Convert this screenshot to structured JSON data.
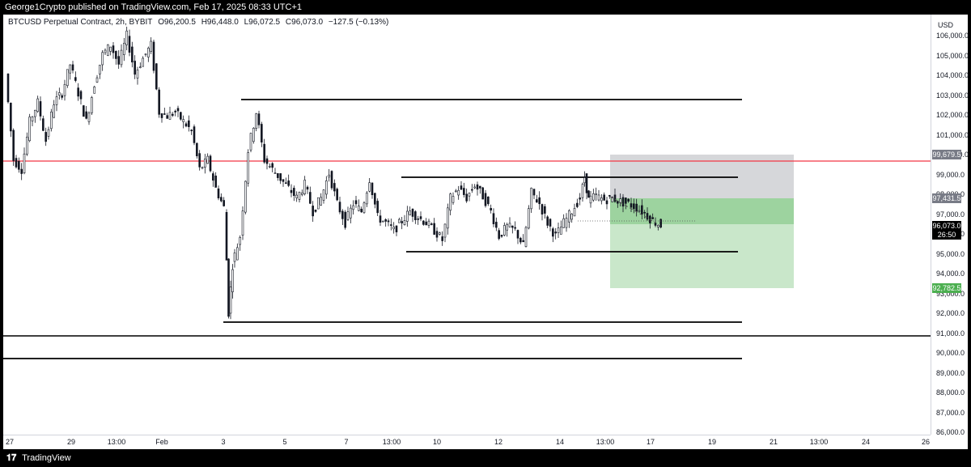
{
  "publisher_line": "George1Crypto published on TradingView.com, Feb 17, 2025 08:33 UTC+1",
  "symbol_info": {
    "title": "BTCUSD Perpetual Contract, 2h, BYBIT",
    "open": "O96,200.5",
    "high": "H96,448.0",
    "low": "L96,072.5",
    "close": "C96,073.0",
    "change": "−127.5 (−0.13%)"
  },
  "price_axis": {
    "currency": "USD",
    "ticks": [
      "106,000.0",
      "105,000.0",
      "104,000.0",
      "103,000.0",
      "102,000.0",
      "101,000.0",
      "100,000.0",
      "99,000.0",
      "98,000.0",
      "97,000.0",
      "96,000.0",
      "95,000.0",
      "94,000.0",
      "93,000.0",
      "92,000.0",
      "91,000.0",
      "90,000.0",
      "89,000.0",
      "88,000.0",
      "87,000.0",
      "86,000.0"
    ]
  },
  "badges": {
    "red_line": "99,679.5",
    "target": "97,431.5",
    "last_price": "96,073.0",
    "countdown": "26:50",
    "stop": "92,782.5"
  },
  "time_axis": [
    "27",
    "29",
    "13:00",
    "Feb",
    "3",
    "5",
    "7",
    "13:00",
    "10",
    "12",
    "14",
    "13:00",
    "17",
    "19",
    "21",
    "13:00",
    "24",
    "26"
  ],
  "footer_text": "TradingView",
  "colors": {
    "up": "#131722",
    "down": "#131722",
    "red_line": "#f23645",
    "profit_zone": "#4caf50",
    "loss_zone": "#787b86"
  },
  "chart_data": {
    "type": "candlestick",
    "ylim": [
      85500,
      106800
    ],
    "levels": [
      {
        "price": 99400,
        "label": "red horizontal line"
      },
      {
        "price": 90300,
        "label": "long horizontal line"
      }
    ],
    "candles_hint": "BTCUSD 2h candles from Jan 27 to Feb 17, 2025",
    "close_path": [
      [
        0,
        104000
      ],
      [
        10,
        99500
      ],
      [
        20,
        99000
      ],
      [
        30,
        101500
      ],
      [
        40,
        102500
      ],
      [
        50,
        100500
      ],
      [
        60,
        102500
      ],
      [
        70,
        103000
      ],
      [
        80,
        104500
      ],
      [
        90,
        103000
      ],
      [
        100,
        101500
      ],
      [
        110,
        103500
      ],
      [
        120,
        105000
      ],
      [
        130,
        105500
      ],
      [
        140,
        104500
      ],
      [
        150,
        106000
      ],
      [
        160,
        104000
      ],
      [
        170,
        104800
      ],
      [
        180,
        105500
      ],
      [
        190,
        102000
      ],
      [
        200,
        101800
      ],
      [
        210,
        102000
      ],
      [
        220,
        101500
      ],
      [
        230,
        101000
      ],
      [
        240,
        99000
      ],
      [
        250,
        99500
      ],
      [
        260,
        98000
      ],
      [
        270,
        97000
      ],
      [
        275,
        91500
      ],
      [
        280,
        94000
      ],
      [
        290,
        95500
      ],
      [
        300,
        100000
      ],
      [
        310,
        102000
      ],
      [
        320,
        99500
      ],
      [
        330,
        99000
      ],
      [
        340,
        98500
      ],
      [
        350,
        98000
      ],
      [
        360,
        97500
      ],
      [
        370,
        98200
      ],
      [
        380,
        96800
      ],
      [
        390,
        97500
      ],
      [
        400,
        98800
      ],
      [
        410,
        97200
      ],
      [
        420,
        96200
      ],
      [
        430,
        97200
      ],
      [
        440,
        96800
      ],
      [
        450,
        98500
      ],
      [
        460,
        96500
      ],
      [
        470,
        96200
      ],
      [
        480,
        95800
      ],
      [
        490,
        96300
      ],
      [
        500,
        96800
      ],
      [
        510,
        96500
      ],
      [
        520,
        96200
      ],
      [
        530,
        95800
      ],
      [
        540,
        95300
      ],
      [
        550,
        97500
      ],
      [
        560,
        98000
      ],
      [
        570,
        97500
      ],
      [
        580,
        98200
      ],
      [
        590,
        97600
      ],
      [
        600,
        96800
      ],
      [
        610,
        95500
      ],
      [
        620,
        96000
      ],
      [
        630,
        95800
      ],
      [
        640,
        95000
      ],
      [
        650,
        97800
      ],
      [
        660,
        97200
      ],
      [
        670,
        96200
      ],
      [
        680,
        95500
      ],
      [
        690,
        96200
      ],
      [
        700,
        96800
      ],
      [
        710,
        97500
      ],
      [
        715,
        98600
      ],
      [
        720,
        97400
      ],
      [
        730,
        97600
      ],
      [
        740,
        97400
      ],
      [
        750,
        97500
      ],
      [
        760,
        97300
      ],
      [
        770,
        97200
      ],
      [
        780,
        97000
      ],
      [
        790,
        96700
      ],
      [
        800,
        96300
      ],
      [
        810,
        96073
      ]
    ]
  }
}
